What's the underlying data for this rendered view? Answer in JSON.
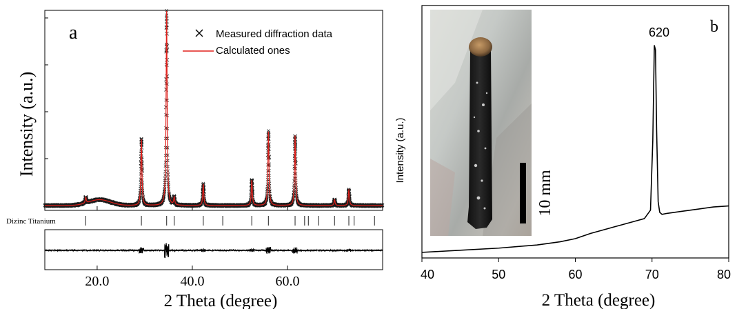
{
  "chart_data": [
    {
      "type": "line",
      "panel_label": "a",
      "xlabel": "2 Theta (degree)",
      "ylabel": "Intensity (a.u.)",
      "xlim": [
        9,
        80
      ],
      "x_ticks": [
        20.0,
        40.0,
        60.0
      ],
      "x_tick_labels": [
        "20.0",
        "40.0",
        "60.0"
      ],
      "y_ticks_unlabeled": 4,
      "legend": {
        "placement": "top-right",
        "entries": [
          "Measured diffraction data",
          "Calculated ones"
        ]
      },
      "phase_label": "Dizinc Titanium",
      "peaks": [
        {
          "x": 17.6,
          "y": 3
        },
        {
          "x": 29.3,
          "y": 34
        },
        {
          "x": 34.6,
          "y": 100
        },
        {
          "x": 36.2,
          "y": 4
        },
        {
          "x": 42.3,
          "y": 11
        },
        {
          "x": 52.5,
          "y": 13
        },
        {
          "x": 56.0,
          "y": 38
        },
        {
          "x": 61.6,
          "y": 36
        },
        {
          "x": 69.9,
          "y": 3
        },
        {
          "x": 72.9,
          "y": 8
        }
      ],
      "background_hump": {
        "center": 20.5,
        "height": 3
      },
      "bragg_positions": [
        17.6,
        29.3,
        34.6,
        36.2,
        42.3,
        46.4,
        52.5,
        56.0,
        61.6,
        63.6,
        64.4,
        66.5,
        69.9,
        72.9,
        74.0,
        78.3
      ],
      "series": [
        {
          "name": "Measured diffraction data",
          "marker": "x",
          "color": "#000000"
        },
        {
          "name": "Calculated ones",
          "marker": "line",
          "color": "#e0201b"
        }
      ]
    },
    {
      "type": "line",
      "panel_label": "b",
      "xlabel": "2 Theta (degree)",
      "ylabel": "Intensity (a.u.)",
      "xlim": [
        40,
        80
      ],
      "x_ticks": [
        40,
        50,
        60,
        70,
        80
      ],
      "x_tick_labels": [
        "40",
        "50",
        "60",
        "70",
        "80"
      ],
      "peak_label": "620",
      "inset_scale_label": "10 mm",
      "series": [
        {
          "name": "",
          "x": [
            40,
            45,
            50,
            55,
            58,
            60,
            62,
            64,
            66,
            68,
            69,
            69.8,
            70.1,
            70.3,
            70.45,
            70.6,
            70.8,
            71.0,
            71.3,
            72,
            74,
            76,
            78,
            80
          ],
          "y": [
            2,
            3,
            4,
            5.5,
            7,
            8.5,
            11,
            13,
            15,
            17,
            18,
            22,
            55,
            100,
            98,
            60,
            26,
            21,
            20,
            20.5,
            21.5,
            22.5,
            23.5,
            24
          ]
        }
      ]
    }
  ]
}
